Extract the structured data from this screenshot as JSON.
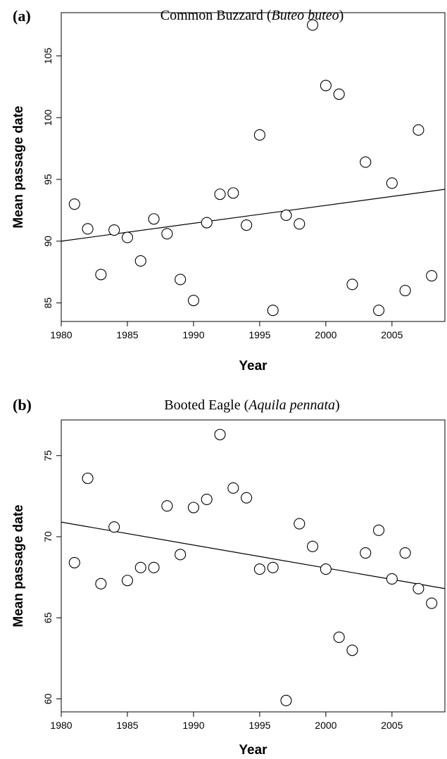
{
  "chart_data": [
    {
      "type": "scatter",
      "panel_label": "(a)",
      "title_plain": "Common Buzzard (",
      "title_italic": "Buteo buteo",
      "title_close": ")",
      "xlabel": "Year",
      "ylabel": "Mean passage date",
      "xlim": [
        1980,
        2009
      ],
      "ylim": [
        83.5,
        108.5
      ],
      "x_ticks": [
        1980,
        1985,
        1990,
        1995,
        2000,
        2005
      ],
      "y_ticks": [
        85,
        90,
        95,
        100,
        105
      ],
      "trend_line": {
        "x": [
          1980,
          2009
        ],
        "y": [
          90.0,
          94.2
        ]
      },
      "points": [
        {
          "x": 1981,
          "y": 93.0
        },
        {
          "x": 1982,
          "y": 91.0
        },
        {
          "x": 1983,
          "y": 87.3
        },
        {
          "x": 1984,
          "y": 90.9
        },
        {
          "x": 1985,
          "y": 90.3
        },
        {
          "x": 1986,
          "y": 88.4
        },
        {
          "x": 1987,
          "y": 91.8
        },
        {
          "x": 1988,
          "y": 90.6
        },
        {
          "x": 1989,
          "y": 86.9
        },
        {
          "x": 1990,
          "y": 85.2
        },
        {
          "x": 1991,
          "y": 91.5
        },
        {
          "x": 1992,
          "y": 93.8
        },
        {
          "x": 1993,
          "y": 93.9
        },
        {
          "x": 1994,
          "y": 91.3
        },
        {
          "x": 1995,
          "y": 98.6
        },
        {
          "x": 1996,
          "y": 84.4
        },
        {
          "x": 1997,
          "y": 92.1
        },
        {
          "x": 1998,
          "y": 91.4
        },
        {
          "x": 1999,
          "y": 107.5
        },
        {
          "x": 2000,
          "y": 102.6
        },
        {
          "x": 2001,
          "y": 101.9
        },
        {
          "x": 2002,
          "y": 86.5
        },
        {
          "x": 2003,
          "y": 96.4
        },
        {
          "x": 2004,
          "y": 84.4
        },
        {
          "x": 2005,
          "y": 94.7
        },
        {
          "x": 2006,
          "y": 86.0
        },
        {
          "x": 2007,
          "y": 99.0
        },
        {
          "x": 2008,
          "y": 87.2
        }
      ]
    },
    {
      "type": "scatter",
      "panel_label": "(b)",
      "title_plain": "Booted Eagle (",
      "title_italic": "Aquila pennata",
      "title_close": ")",
      "xlabel": "Year",
      "ylabel": "Mean passage date",
      "xlim": [
        1980,
        2009
      ],
      "ylim": [
        59.2,
        77.2
      ],
      "x_ticks": [
        1980,
        1985,
        1990,
        1995,
        2000,
        2005
      ],
      "y_ticks": [
        60,
        65,
        70,
        75
      ],
      "trend_line": {
        "x": [
          1980,
          2009
        ],
        "y": [
          70.9,
          66.8
        ]
      },
      "points": [
        {
          "x": 1981,
          "y": 68.4
        },
        {
          "x": 1982,
          "y": 73.6
        },
        {
          "x": 1983,
          "y": 67.1
        },
        {
          "x": 1984,
          "y": 70.6
        },
        {
          "x": 1985,
          "y": 67.3
        },
        {
          "x": 1986,
          "y": 68.1
        },
        {
          "x": 1987,
          "y": 68.1
        },
        {
          "x": 1988,
          "y": 71.9
        },
        {
          "x": 1989,
          "y": 68.9
        },
        {
          "x": 1990,
          "y": 71.8
        },
        {
          "x": 1991,
          "y": 72.3
        },
        {
          "x": 1992,
          "y": 76.3
        },
        {
          "x": 1993,
          "y": 73.0
        },
        {
          "x": 1994,
          "y": 72.4
        },
        {
          "x": 1995,
          "y": 68.0
        },
        {
          "x": 1996,
          "y": 68.1
        },
        {
          "x": 1997,
          "y": 59.9
        },
        {
          "x": 1998,
          "y": 70.8
        },
        {
          "x": 1999,
          "y": 69.4
        },
        {
          "x": 2000,
          "y": 68.0
        },
        {
          "x": 2001,
          "y": 63.8
        },
        {
          "x": 2002,
          "y": 63.0
        },
        {
          "x": 2003,
          "y": 69.0
        },
        {
          "x": 2004,
          "y": 70.4
        },
        {
          "x": 2005,
          "y": 67.4
        },
        {
          "x": 2006,
          "y": 69.0
        },
        {
          "x": 2007,
          "y": 66.8
        },
        {
          "x": 2008,
          "y": 65.9
        }
      ]
    }
  ]
}
